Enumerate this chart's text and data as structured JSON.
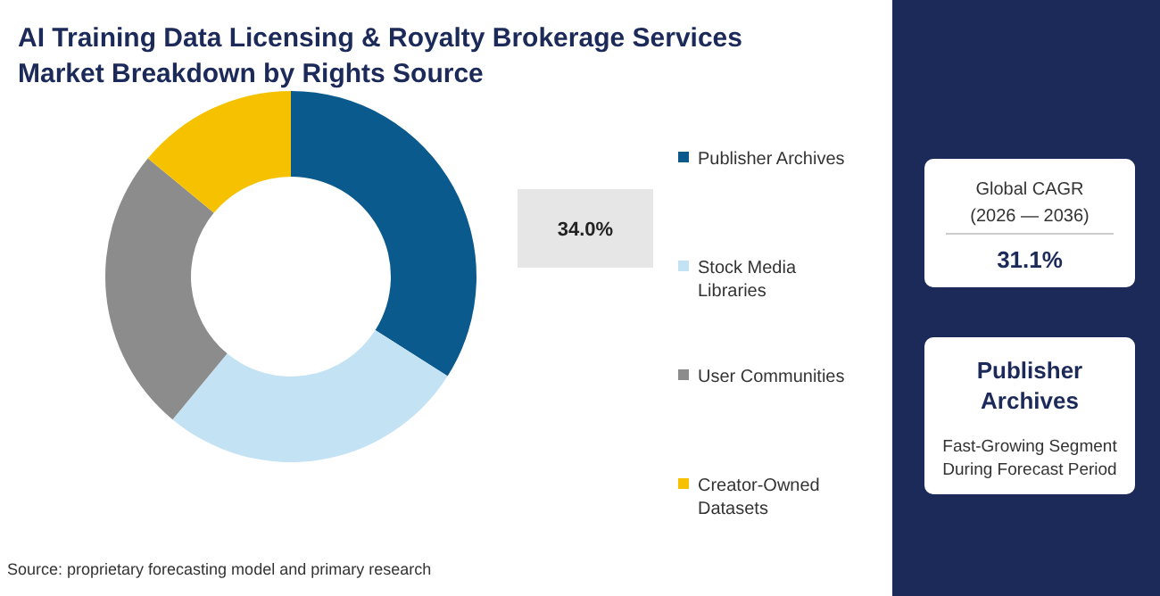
{
  "chart_data": {
    "type": "donut",
    "title": "AI Training Data Licensing & Royalty Brokerage Services Market Breakdown by Rights Source",
    "categories": [
      "Publisher Archives",
      "Stock Media Libraries",
      "User Communities",
      "Creator-Owned Datasets"
    ],
    "values": [
      34.0,
      27,
      25,
      14
    ],
    "colors": [
      "#0b5a8e",
      "#c3e3f4",
      "#8c8c8c",
      "#f6c200"
    ],
    "value_labels": [
      "34.0%",
      null,
      null,
      null
    ],
    "legend": "right",
    "annotations": [
      "Global CAGR",
      "(2026 — 2036)",
      "31.1%",
      "Publisher Archives",
      "Fast-Growing Segment During Forecast Period",
      "Source: proprietary forecasting model and primary research"
    ]
  }
}
